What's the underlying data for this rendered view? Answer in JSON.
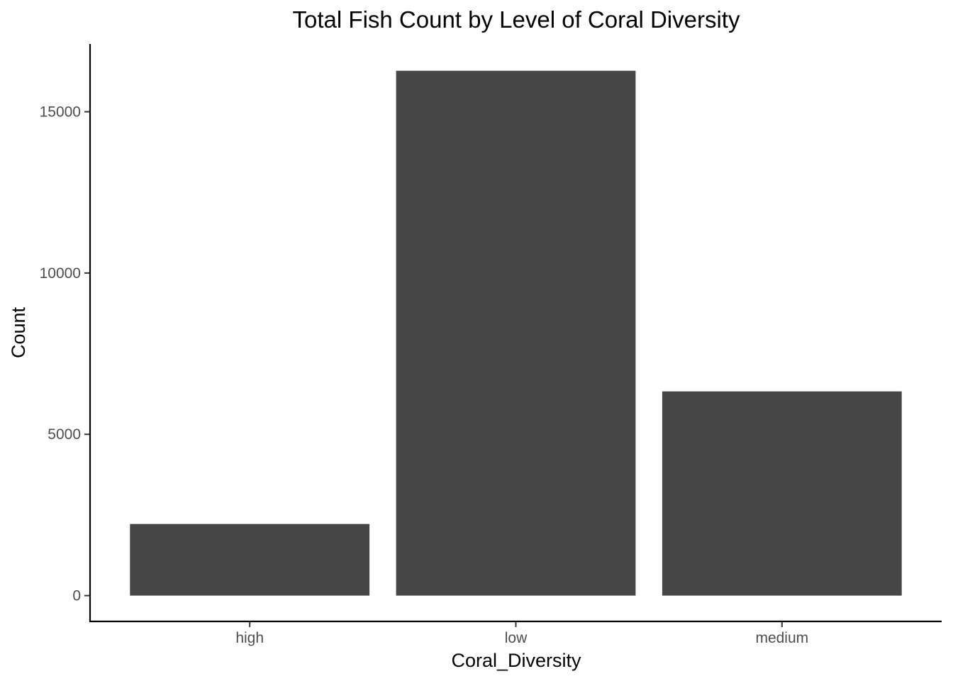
{
  "chart_data": {
    "type": "bar",
    "title": "Total Fish Count by Level of Coral Diversity",
    "xlabel": "Coral_Diversity",
    "ylabel": "Count",
    "categories": [
      "high",
      "low",
      "medium"
    ],
    "values": [
      2220,
      16270,
      6330
    ],
    "yticks": [
      0,
      5000,
      10000,
      15000
    ],
    "ylim": [
      -800,
      17100
    ],
    "grid": false,
    "legend": "none",
    "bar_color": "#474747"
  }
}
